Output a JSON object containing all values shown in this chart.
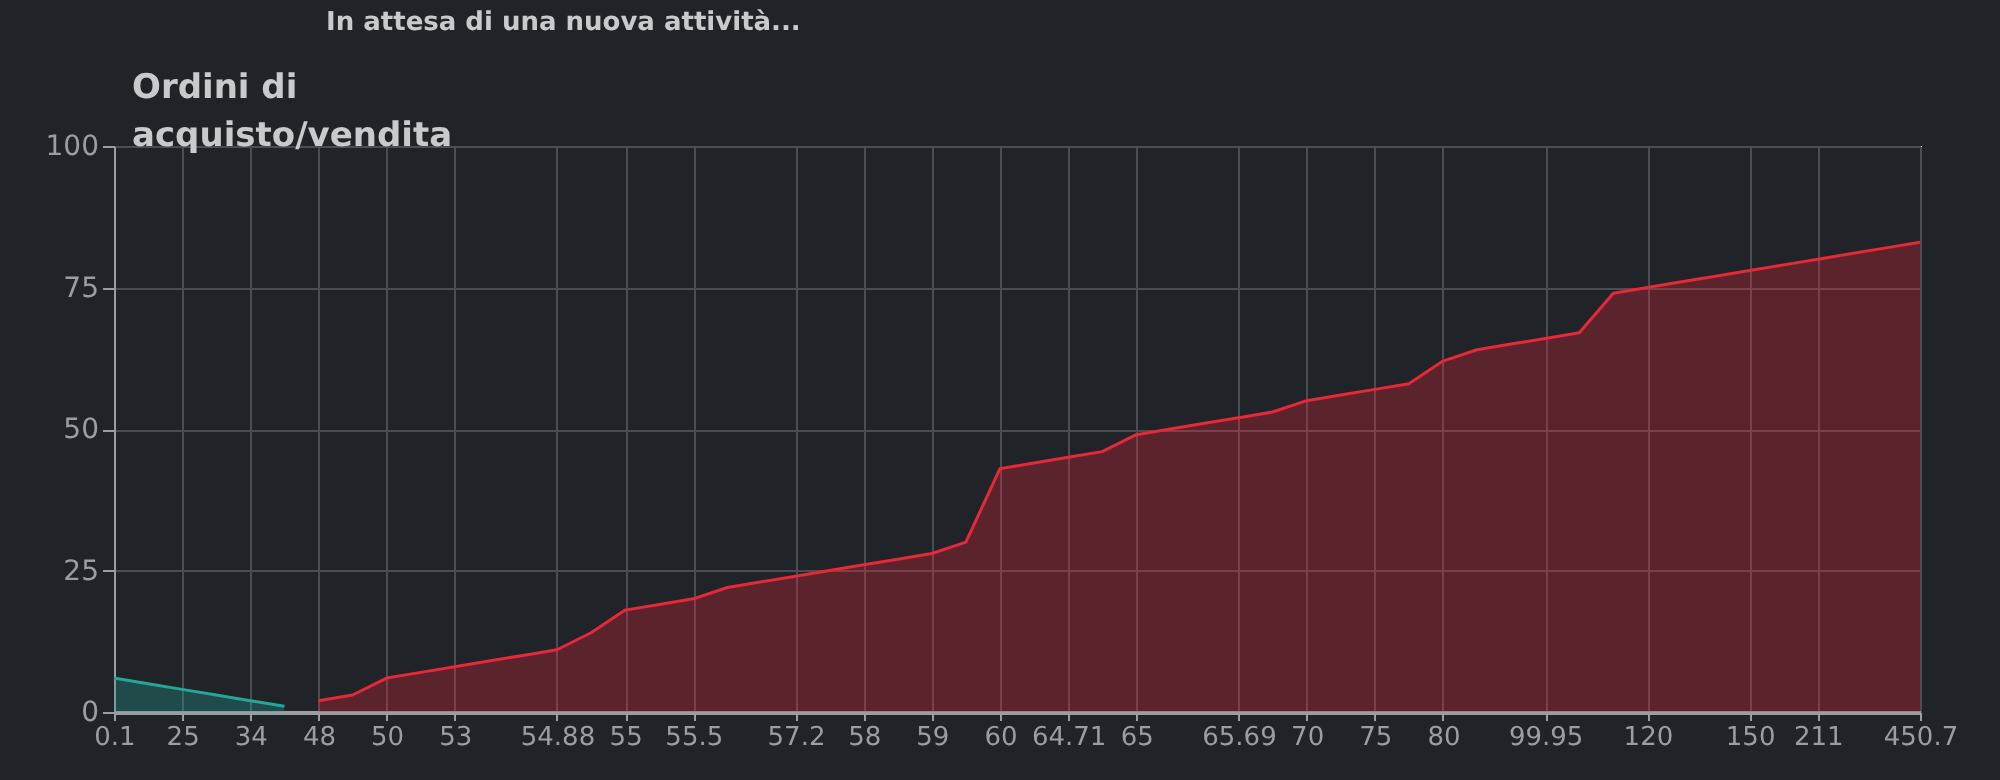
{
  "chart_data": {
    "type": "area",
    "title": "Ordini di acquisto/vendita",
    "annotations": [
      "In attesa di una nuova attività..."
    ],
    "categories": [
      "0.1",
      null,
      "25",
      null,
      "34",
      null,
      "48",
      null,
      "50",
      null,
      "53",
      null,
      null,
      "54.88",
      null,
      "55",
      null,
      "55.5",
      null,
      null,
      "57.2",
      null,
      "58",
      null,
      "59",
      null,
      "60",
      null,
      "64.71",
      null,
      "65",
      null,
      null,
      "65.69",
      null,
      "70",
      null,
      "75",
      null,
      "80",
      null,
      null,
      "99.95",
      null,
      null,
      "120",
      null,
      null,
      "150",
      null,
      "211",
      null,
      null,
      "450.7"
    ],
    "series": [
      {
        "color": "#26a69a",
        "values": [
          6,
          5,
          4,
          3,
          2,
          1,
          null,
          null,
          null,
          null,
          null,
          null,
          null,
          null,
          null,
          null,
          null,
          null,
          null,
          null,
          null,
          null,
          null,
          null,
          null,
          null,
          null,
          null,
          null,
          null,
          null,
          null,
          null,
          null,
          null,
          null,
          null,
          null,
          null,
          null,
          null,
          null,
          null,
          null,
          null,
          null,
          null,
          null,
          null,
          null,
          null,
          null,
          null,
          null
        ]
      },
      {
        "color": "#e5283a",
        "values": [
          null,
          null,
          null,
          null,
          null,
          null,
          2,
          3,
          6,
          7,
          8,
          9,
          10,
          11,
          14,
          18,
          19,
          20,
          22,
          23,
          24,
          25,
          26,
          27,
          28,
          30,
          43,
          44,
          45,
          46,
          49,
          50,
          51,
          52,
          53,
          55,
          56,
          57,
          58,
          62,
          64,
          65,
          66,
          67,
          74,
          75,
          76,
          77,
          78,
          79,
          80,
          81,
          82,
          83
        ]
      }
    ],
    "ylim": [
      0,
      100
    ],
    "yticks": [
      0,
      25,
      50,
      75,
      100
    ],
    "grid": true,
    "legend": false
  }
}
